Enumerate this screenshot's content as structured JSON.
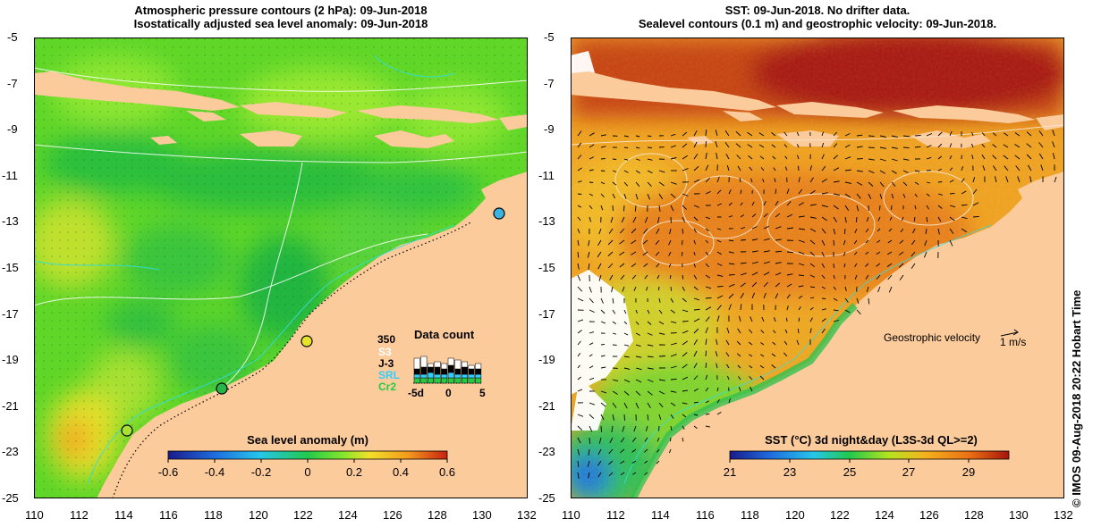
{
  "left_panel": {
    "title_line1": "Atmospheric pressure contours (2 hPa): 09-Jun-2018",
    "title_line2": "Isostatically adjusted sea level anomaly: 09-Jun-2018",
    "colorbar_title": "Sea level anomaly (m)",
    "colorbar_ticks": [
      "-0.6",
      "-0.4",
      "-0.2",
      "0",
      "0.2",
      "0.4",
      "0.6"
    ],
    "data_count": {
      "title": "Data count",
      "max_label": "350",
      "legend": [
        {
          "label": "S3",
          "color": "#ffffff"
        },
        {
          "label": "J-3",
          "color": "#000000"
        },
        {
          "label": "SRL",
          "color": "#33ccff"
        },
        {
          "label": "Cr2",
          "color": "#22cc44"
        }
      ],
      "x_labels": [
        "-5d",
        "0",
        "5"
      ]
    }
  },
  "right_panel": {
    "title_line1": "SST: 09-Jun-2018. No drifter data.",
    "title_line2": "Sealevel contours (0.1 m) and geostrophic velocity: 09-Jun-2018.",
    "velocity_label": "Geostrophic velocity",
    "velocity_scale": "1 m/s",
    "colorbar_title": "SST (°C) 3d night&day (L3S-3d QL>=2)",
    "colorbar_ticks": [
      "21",
      "23",
      "25",
      "27",
      "29"
    ]
  },
  "y_ticks": [
    "-5",
    "-7",
    "-9",
    "-11",
    "-13",
    "-15",
    "-17",
    "-19",
    "-21",
    "-23",
    "-25"
  ],
  "x_ticks": [
    "110",
    "112",
    "114",
    "116",
    "118",
    "120",
    "122",
    "124",
    "126",
    "128",
    "130",
    "132"
  ],
  "side_text": "© IMOS 09-Aug-2018 20:22 Hobart Time",
  "colors": {
    "land": "#fccb9b",
    "sla_scale": [
      "#1a1a8c",
      "#1e6fe0",
      "#26c6ea",
      "#22c94b",
      "#7ee62c",
      "#f2e02a",
      "#f39a1e",
      "#c8210e"
    ],
    "sst_scale": [
      "#1a1a8c",
      "#1e6fe0",
      "#26c6ea",
      "#22c94b",
      "#b6e31f",
      "#f5b21e",
      "#ea6f13",
      "#a8150b"
    ]
  }
}
